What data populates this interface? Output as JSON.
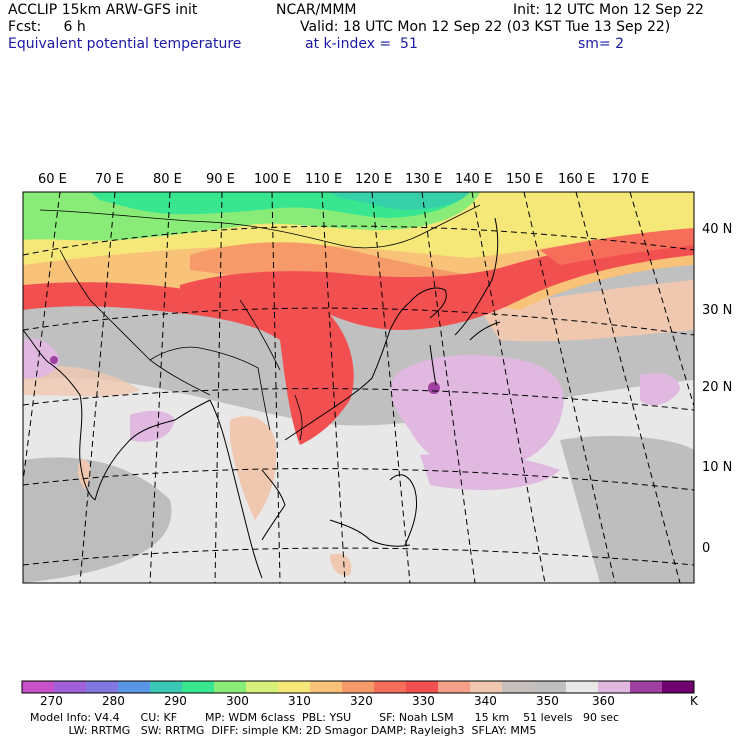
{
  "header": {
    "model_line": "ACCLIP 15km ARW-GFS init",
    "org": "NCAR/MMM",
    "init": "Init: 12 UTC Mon 12 Sep 22",
    "fcst": "Fcst:     6 h",
    "valid": "Valid: 18 UTC Mon 12 Sep 22 (03 KST Tue 13 Sep 22)",
    "field": "Equivalent potential temperature",
    "level": "at k-index =  51",
    "smooth": "sm= 2"
  },
  "map": {
    "lon_labels": [
      "60 E",
      "70 E",
      "80 E",
      "90 E",
      "100 E",
      "110 E",
      "120 E",
      "130 E",
      "140 E",
      "150 E",
      "160 E",
      "170 E"
    ],
    "lat_labels": [
      "40 N",
      "30 N",
      "20 N",
      "10 N",
      "0"
    ]
  },
  "colorbar": {
    "ticks": [
      "270",
      "280",
      "290",
      "300",
      "310",
      "320",
      "330",
      "340",
      "350",
      "360"
    ],
    "unit": "K",
    "colors": [
      "#c850c8",
      "#a060d8",
      "#8078e0",
      "#5a96e6",
      "#38c8b4",
      "#38e690",
      "#8aec78",
      "#d6f07a",
      "#f6e878",
      "#f8c278",
      "#f69a6a",
      "#f66e5a",
      "#f25050",
      "#f6a08a",
      "#f0c8b0",
      "#c8c0bc",
      "#c0c0c0",
      "#e8e8e8",
      "#e0b8e0",
      "#a040a0",
      "#700070"
    ]
  },
  "footer": {
    "line1": "Model Info: V4.4      CU: KF        MP: WDM 6class  PBL: YSU        SF: Noah LSM      15 km    51 levels   90 sec",
    "line2": "           LW: RRTMG   SW: RRTMG  DIFF: simple KM: 2D Smagor DAMP: Rayleigh3  SFLAY: MM5"
  }
}
